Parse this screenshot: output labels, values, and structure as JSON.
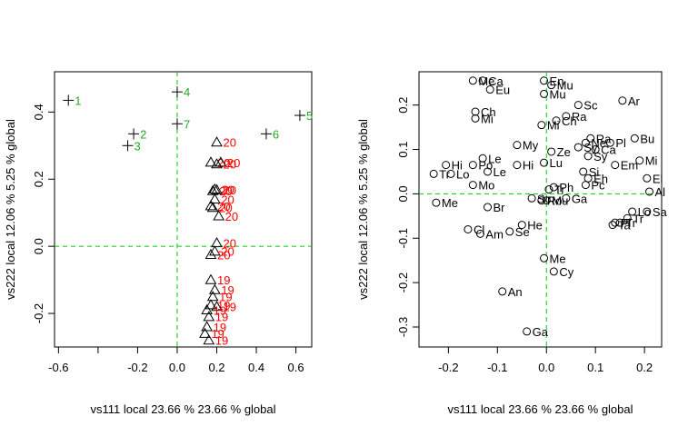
{
  "chart_data": [
    {
      "type": "scatter",
      "xlabel": "vs111  local 23.66 %  23.66 % global",
      "ylabel": "vs222  local 12.06 %  5.25 % global",
      "xlim": [
        -0.62,
        0.68
      ],
      "ylim": [
        -0.3,
        0.52
      ],
      "xticks": [
        -0.6,
        -0.4,
        -0.2,
        0.0,
        0.2,
        0.4,
        0.6
      ],
      "xtick_labels": [
        "-0.6",
        "",
        "-0.2",
        "0.0",
        "0.2",
        "0.4",
        "0.6"
      ],
      "yticks": [
        -0.2,
        0.0,
        0.2,
        0.4
      ],
      "ytick_labels": [
        "-0.2",
        "0.0",
        "0.2",
        "0.4"
      ],
      "reference_lines": {
        "x": 0,
        "y": 0,
        "color": "#00cc00",
        "style": "dashed"
      },
      "colors": {
        "label_green": "#22aa22",
        "label_red": "#ff0000",
        "marker": "#000000"
      },
      "series": [
        {
          "marker": "plus",
          "label_color": "#22aa22",
          "points": [
            {
              "label": "1",
              "x": -0.55,
              "y": 0.435
            },
            {
              "label": "2",
              "x": -0.22,
              "y": 0.335
            },
            {
              "label": "3",
              "x": -0.25,
              "y": 0.3
            },
            {
              "label": "4",
              "x": 0.0,
              "y": 0.46
            },
            {
              "label": "5",
              "x": 0.62,
              "y": 0.39
            },
            {
              "label": "6",
              "x": 0.45,
              "y": 0.335
            },
            {
              "label": "7",
              "x": 0.0,
              "y": 0.365
            }
          ]
        },
        {
          "marker": "triangle",
          "label_color": "#ff0000",
          "points": [
            {
              "label": "20",
              "x": 0.2,
              "y": 0.31
            },
            {
              "label": "20",
              "x": 0.17,
              "y": 0.25
            },
            {
              "label": "20",
              "x": 0.22,
              "y": 0.25
            },
            {
              "label": "20",
              "x": 0.2,
              "y": 0.245
            },
            {
              "label": "20",
              "x": 0.19,
              "y": 0.17
            },
            {
              "label": "20",
              "x": 0.18,
              "y": 0.165
            },
            {
              "label": "20",
              "x": 0.2,
              "y": 0.168
            },
            {
              "label": "20",
              "x": 0.19,
              "y": 0.14
            },
            {
              "label": "20",
              "x": 0.17,
              "y": 0.12
            },
            {
              "label": "20",
              "x": 0.18,
              "y": 0.115
            },
            {
              "label": "20",
              "x": 0.21,
              "y": 0.09
            },
            {
              "label": "20",
              "x": 0.2,
              "y": 0.01
            },
            {
              "label": "20",
              "x": 0.19,
              "y": -0.015
            },
            {
              "label": "20",
              "x": 0.17,
              "y": -0.025
            },
            {
              "label": "19",
              "x": 0.17,
              "y": -0.1
            },
            {
              "label": "19",
              "x": 0.19,
              "y": -0.13
            },
            {
              "label": "19",
              "x": 0.18,
              "y": -0.15
            },
            {
              "label": "19",
              "x": 0.17,
              "y": -0.175
            },
            {
              "label": "19",
              "x": 0.2,
              "y": -0.18
            },
            {
              "label": "19",
              "x": 0.15,
              "y": -0.19
            },
            {
              "label": "19",
              "x": 0.16,
              "y": -0.21
            },
            {
              "label": "19",
              "x": 0.15,
              "y": -0.24
            },
            {
              "label": "19",
              "x": 0.14,
              "y": -0.26
            },
            {
              "label": "19",
              "x": 0.16,
              "y": -0.28
            }
          ]
        }
      ]
    },
    {
      "type": "scatter",
      "xlabel": "vs111  local 23.66 %  23.66 % global",
      "ylabel": "vs222  local 12.06 %  5.25 % global",
      "xlim": [
        -0.26,
        0.235
      ],
      "ylim": [
        -0.345,
        0.275
      ],
      "xticks": [
        -0.2,
        -0.1,
        0.0,
        0.1,
        0.2
      ],
      "xtick_labels": [
        "-0.2",
        "-0.1",
        "0.0",
        "0.1",
        "0.2"
      ],
      "yticks": [
        -0.3,
        -0.2,
        -0.1,
        0.0,
        0.1,
        0.2
      ],
      "ytick_labels": [
        "-0.3",
        "-0.2",
        "-0.1",
        "0.0",
        "0.1",
        "0.2"
      ],
      "reference_lines": {
        "x": 0,
        "y": 0,
        "color": "#00cc00",
        "style": "dashed"
      },
      "series": [
        {
          "marker": "circle",
          "label_color": "#000000",
          "points": [
            {
              "label": "Ca",
              "x": -0.13,
              "y": 0.255
            },
            {
              "label": "Me",
              "x": -0.15,
              "y": 0.255
            },
            {
              "label": "Eu",
              "x": -0.115,
              "y": 0.235
            },
            {
              "label": "En",
              "x": -0.005,
              "y": 0.255
            },
            {
              "label": "Mu",
              "x": 0.01,
              "y": 0.245
            },
            {
              "label": "Mu",
              "x": -0.005,
              "y": 0.225
            },
            {
              "label": "Ar",
              "x": 0.155,
              "y": 0.21
            },
            {
              "label": "Sc",
              "x": 0.065,
              "y": 0.2
            },
            {
              "label": "Ch",
              "x": -0.145,
              "y": 0.185
            },
            {
              "label": "Mi",
              "x": -0.145,
              "y": 0.17
            },
            {
              "label": "Ra",
              "x": 0.04,
              "y": 0.175
            },
            {
              "label": "Ch",
              "x": 0.02,
              "y": 0.165
            },
            {
              "label": "Mi",
              "x": -0.01,
              "y": 0.155
            },
            {
              "label": "Bu",
              "x": 0.18,
              "y": 0.125
            },
            {
              "label": "Ra",
              "x": 0.09,
              "y": 0.125
            },
            {
              "label": "Pl",
              "x": 0.13,
              "y": 0.115
            },
            {
              "label": "Ne",
              "x": 0.08,
              "y": 0.115
            },
            {
              "label": "My",
              "x": -0.06,
              "y": 0.11
            },
            {
              "label": "Sy",
              "x": 0.065,
              "y": 0.105
            },
            {
              "label": "Ca",
              "x": 0.1,
              "y": 0.1
            },
            {
              "label": "Ze",
              "x": 0.01,
              "y": 0.095
            },
            {
              "label": "Sy",
              "x": 0.085,
              "y": 0.085
            },
            {
              "label": "Le",
              "x": -0.13,
              "y": 0.08
            },
            {
              "label": "Mi",
              "x": 0.19,
              "y": 0.075
            },
            {
              "label": "Hi",
              "x": -0.205,
              "y": 0.065
            },
            {
              "label": "Hi",
              "x": -0.06,
              "y": 0.065
            },
            {
              "label": "Po",
              "x": -0.15,
              "y": 0.065
            },
            {
              "label": "Lu",
              "x": -0.005,
              "y": 0.07
            },
            {
              "label": "Em",
              "x": 0.14,
              "y": 0.065
            },
            {
              "label": "Le",
              "x": -0.12,
              "y": 0.05
            },
            {
              "label": "Lo",
              "x": -0.195,
              "y": 0.045
            },
            {
              "label": "Tr",
              "x": -0.23,
              "y": 0.045
            },
            {
              "label": "Si",
              "x": 0.075,
              "y": 0.05
            },
            {
              "label": "Eh",
              "x": 0.085,
              "y": 0.035
            },
            {
              "label": "El",
              "x": 0.205,
              "y": 0.035
            },
            {
              "label": "Mo",
              "x": -0.15,
              "y": 0.02
            },
            {
              "label": "Pc",
              "x": 0.08,
              "y": 0.02
            },
            {
              "label": "Ph",
              "x": 0.015,
              "y": 0.015
            },
            {
              "label": "Tr",
              "x": 0.005,
              "y": 0.01
            },
            {
              "label": "Al",
              "x": 0.21,
              "y": 0.005
            },
            {
              "label": "Sc",
              "x": -0.03,
              "y": -0.01
            },
            {
              "label": "Ga",
              "x": 0.04,
              "y": -0.01
            },
            {
              "label": "Ro",
              "x": -0.01,
              "y": -0.015
            },
            {
              "label": "Mu",
              "x": 0.0,
              "y": -0.015
            },
            {
              "label": "Me",
              "x": -0.225,
              "y": -0.02
            },
            {
              "label": "Br",
              "x": -0.12,
              "y": -0.03
            },
            {
              "label": "Lo",
              "x": 0.175,
              "y": -0.04
            },
            {
              "label": "Sa",
              "x": 0.205,
              "y": -0.04
            },
            {
              "label": "Tr",
              "x": 0.165,
              "y": -0.055
            },
            {
              "label": "Pl",
              "x": 0.14,
              "y": -0.065
            },
            {
              "label": "Tr",
              "x": 0.15,
              "y": -0.065
            },
            {
              "label": "Ta",
              "x": 0.135,
              "y": -0.07
            },
            {
              "label": "He",
              "x": -0.05,
              "y": -0.07
            },
            {
              "label": "Cl",
              "x": -0.16,
              "y": -0.08
            },
            {
              "label": "Se",
              "x": -0.075,
              "y": -0.085
            },
            {
              "label": "Am",
              "x": -0.135,
              "y": -0.09
            },
            {
              "label": "Me",
              "x": -0.005,
              "y": -0.145
            },
            {
              "label": "Cy",
              "x": 0.015,
              "y": -0.175
            },
            {
              "label": "An",
              "x": -0.09,
              "y": -0.22
            },
            {
              "label": "Ga",
              "x": -0.04,
              "y": -0.31
            }
          ]
        }
      ]
    }
  ]
}
